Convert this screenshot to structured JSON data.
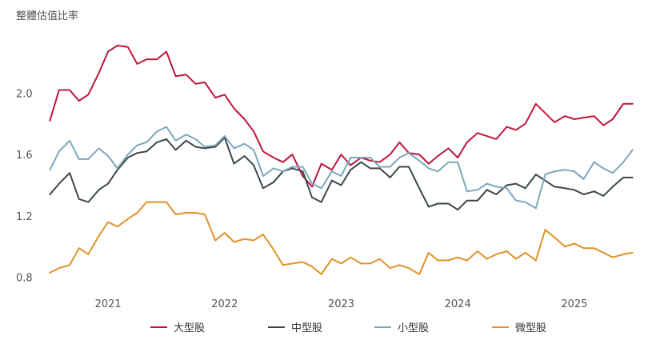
{
  "chart_data": {
    "type": "line",
    "ylabel": "整體估值比率",
    "ylim": [
      0.72,
      2.45
    ],
    "xlim": [
      2020.45,
      2025.55
    ],
    "yticks": [
      0.8,
      1.2,
      1.6,
      2.0
    ],
    "ytick_labels": [
      "0.8",
      "1.2",
      "1.6",
      "2.0"
    ],
    "xticks": [
      2021,
      2022,
      2023,
      2024,
      2025
    ],
    "xtick_labels": [
      "2021",
      "2022",
      "2023",
      "2024",
      "2025"
    ],
    "grid": false,
    "legend_position": "bottom",
    "series": [
      {
        "name": "大型股",
        "color": "#c0143c",
        "x": [
          2020.5,
          2020.58,
          2020.67,
          2020.75,
          2020.83,
          2020.92,
          2021.0,
          2021.08,
          2021.17,
          2021.25,
          2021.33,
          2021.42,
          2021.5,
          2021.58,
          2021.67,
          2021.75,
          2021.83,
          2021.92,
          2022.0,
          2022.08,
          2022.17,
          2022.25,
          2022.33,
          2022.42,
          2022.5,
          2022.58,
          2022.67,
          2022.75,
          2022.83,
          2022.92,
          2023.0,
          2023.08,
          2023.17,
          2023.25,
          2023.33,
          2023.42,
          2023.5,
          2023.58,
          2023.67,
          2023.75,
          2023.83,
          2023.92,
          2024.0,
          2024.08,
          2024.17,
          2024.25,
          2024.33,
          2024.42,
          2024.5,
          2024.58,
          2024.67,
          2024.75,
          2024.83,
          2024.92,
          2025.0,
          2025.08,
          2025.17,
          2025.25,
          2025.33,
          2025.42,
          2025.5
        ],
        "values": [
          1.82,
          2.02,
          2.02,
          1.95,
          1.99,
          2.13,
          2.27,
          2.31,
          2.3,
          2.19,
          2.22,
          2.22,
          2.27,
          2.11,
          2.12,
          2.06,
          2.07,
          1.97,
          1.99,
          1.9,
          1.83,
          1.75,
          1.62,
          1.58,
          1.55,
          1.6,
          1.46,
          1.39,
          1.54,
          1.5,
          1.6,
          1.53,
          1.58,
          1.56,
          1.55,
          1.6,
          1.68,
          1.61,
          1.6,
          1.54,
          1.59,
          1.64,
          1.58,
          1.68,
          1.74,
          1.72,
          1.7,
          1.78,
          1.76,
          1.8,
          1.93,
          1.87,
          1.81,
          1.85,
          1.83,
          1.84,
          1.85,
          1.79,
          1.83,
          1.93,
          1.93
        ]
      },
      {
        "name": "中型股",
        "color": "#3b464c",
        "x": [
          2020.5,
          2020.58,
          2020.67,
          2020.75,
          2020.83,
          2020.92,
          2021.0,
          2021.08,
          2021.17,
          2021.25,
          2021.33,
          2021.42,
          2021.5,
          2021.58,
          2021.67,
          2021.75,
          2021.83,
          2021.92,
          2022.0,
          2022.08,
          2022.17,
          2022.25,
          2022.33,
          2022.42,
          2022.5,
          2022.58,
          2022.67,
          2022.75,
          2022.83,
          2022.92,
          2023.0,
          2023.08,
          2023.17,
          2023.25,
          2023.33,
          2023.42,
          2023.5,
          2023.58,
          2023.67,
          2023.75,
          2023.83,
          2023.92,
          2024.0,
          2024.08,
          2024.17,
          2024.25,
          2024.33,
          2024.42,
          2024.5,
          2024.58,
          2024.67,
          2024.75,
          2024.83,
          2024.92,
          2025.0,
          2025.08,
          2025.17,
          2025.25,
          2025.33,
          2025.42,
          2025.5
        ],
        "values": [
          1.34,
          1.41,
          1.48,
          1.31,
          1.29,
          1.37,
          1.41,
          1.5,
          1.58,
          1.61,
          1.62,
          1.68,
          1.7,
          1.63,
          1.69,
          1.65,
          1.64,
          1.65,
          1.71,
          1.54,
          1.59,
          1.53,
          1.38,
          1.42,
          1.49,
          1.51,
          1.49,
          1.32,
          1.29,
          1.43,
          1.4,
          1.5,
          1.55,
          1.51,
          1.51,
          1.45,
          1.52,
          1.52,
          1.38,
          1.26,
          1.28,
          1.28,
          1.24,
          1.3,
          1.3,
          1.37,
          1.34,
          1.4,
          1.41,
          1.38,
          1.47,
          1.43,
          1.39,
          1.38,
          1.37,
          1.34,
          1.36,
          1.33,
          1.39,
          1.45,
          1.45
        ]
      },
      {
        "name": "小型股",
        "color": "#7ba7bc",
        "x": [
          2020.5,
          2020.58,
          2020.67,
          2020.75,
          2020.83,
          2020.92,
          2021.0,
          2021.08,
          2021.17,
          2021.25,
          2021.33,
          2021.42,
          2021.5,
          2021.58,
          2021.67,
          2021.75,
          2021.83,
          2021.92,
          2022.0,
          2022.08,
          2022.17,
          2022.25,
          2022.33,
          2022.42,
          2022.5,
          2022.58,
          2022.67,
          2022.75,
          2022.83,
          2022.92,
          2023.0,
          2023.08,
          2023.17,
          2023.25,
          2023.33,
          2023.42,
          2023.5,
          2023.58,
          2023.67,
          2023.75,
          2023.83,
          2023.92,
          2024.0,
          2024.08,
          2024.17,
          2024.25,
          2024.33,
          2024.42,
          2024.5,
          2024.58,
          2024.67,
          2024.75,
          2024.83,
          2024.92,
          2025.0,
          2025.08,
          2025.17,
          2025.25,
          2025.33,
          2025.42,
          2025.5
        ],
        "values": [
          1.5,
          1.62,
          1.69,
          1.57,
          1.57,
          1.64,
          1.59,
          1.51,
          1.6,
          1.66,
          1.68,
          1.75,
          1.78,
          1.69,
          1.73,
          1.7,
          1.65,
          1.66,
          1.72,
          1.64,
          1.67,
          1.63,
          1.46,
          1.51,
          1.49,
          1.52,
          1.52,
          1.41,
          1.38,
          1.49,
          1.46,
          1.58,
          1.58,
          1.58,
          1.52,
          1.52,
          1.58,
          1.61,
          1.56,
          1.51,
          1.49,
          1.55,
          1.55,
          1.36,
          1.37,
          1.41,
          1.39,
          1.38,
          1.3,
          1.29,
          1.25,
          1.47,
          1.49,
          1.5,
          1.49,
          1.44,
          1.55,
          1.51,
          1.48,
          1.55,
          1.63
        ]
      },
      {
        "name": "微型股",
        "color": "#e0912a",
        "x": [
          2020.5,
          2020.58,
          2020.67,
          2020.75,
          2020.83,
          2020.92,
          2021.0,
          2021.08,
          2021.17,
          2021.25,
          2021.33,
          2021.42,
          2021.5,
          2021.58,
          2021.67,
          2021.75,
          2021.83,
          2021.92,
          2022.0,
          2022.08,
          2022.17,
          2022.25,
          2022.33,
          2022.42,
          2022.5,
          2022.58,
          2022.67,
          2022.75,
          2022.83,
          2022.92,
          2023.0,
          2023.08,
          2023.17,
          2023.25,
          2023.33,
          2023.42,
          2023.5,
          2023.58,
          2023.67,
          2023.75,
          2023.83,
          2023.92,
          2024.0,
          2024.08,
          2024.17,
          2024.25,
          2024.33,
          2024.42,
          2024.5,
          2024.58,
          2024.67,
          2024.75,
          2024.83,
          2024.92,
          2025.0,
          2025.08,
          2025.17,
          2025.25,
          2025.33,
          2025.42,
          2025.5
        ],
        "values": [
          0.83,
          0.86,
          0.88,
          0.99,
          0.95,
          1.07,
          1.16,
          1.13,
          1.18,
          1.22,
          1.29,
          1.29,
          1.29,
          1.21,
          1.22,
          1.22,
          1.21,
          1.04,
          1.09,
          1.03,
          1.05,
          1.04,
          1.08,
          0.98,
          0.88,
          0.89,
          0.9,
          0.87,
          0.82,
          0.92,
          0.89,
          0.93,
          0.89,
          0.89,
          0.92,
          0.86,
          0.88,
          0.86,
          0.82,
          0.96,
          0.91,
          0.91,
          0.93,
          0.91,
          0.97,
          0.92,
          0.95,
          0.97,
          0.92,
          0.96,
          0.91,
          1.11,
          1.06,
          1.0,
          1.02,
          0.99,
          0.99,
          0.96,
          0.93,
          0.95,
          0.96
        ]
      }
    ]
  }
}
